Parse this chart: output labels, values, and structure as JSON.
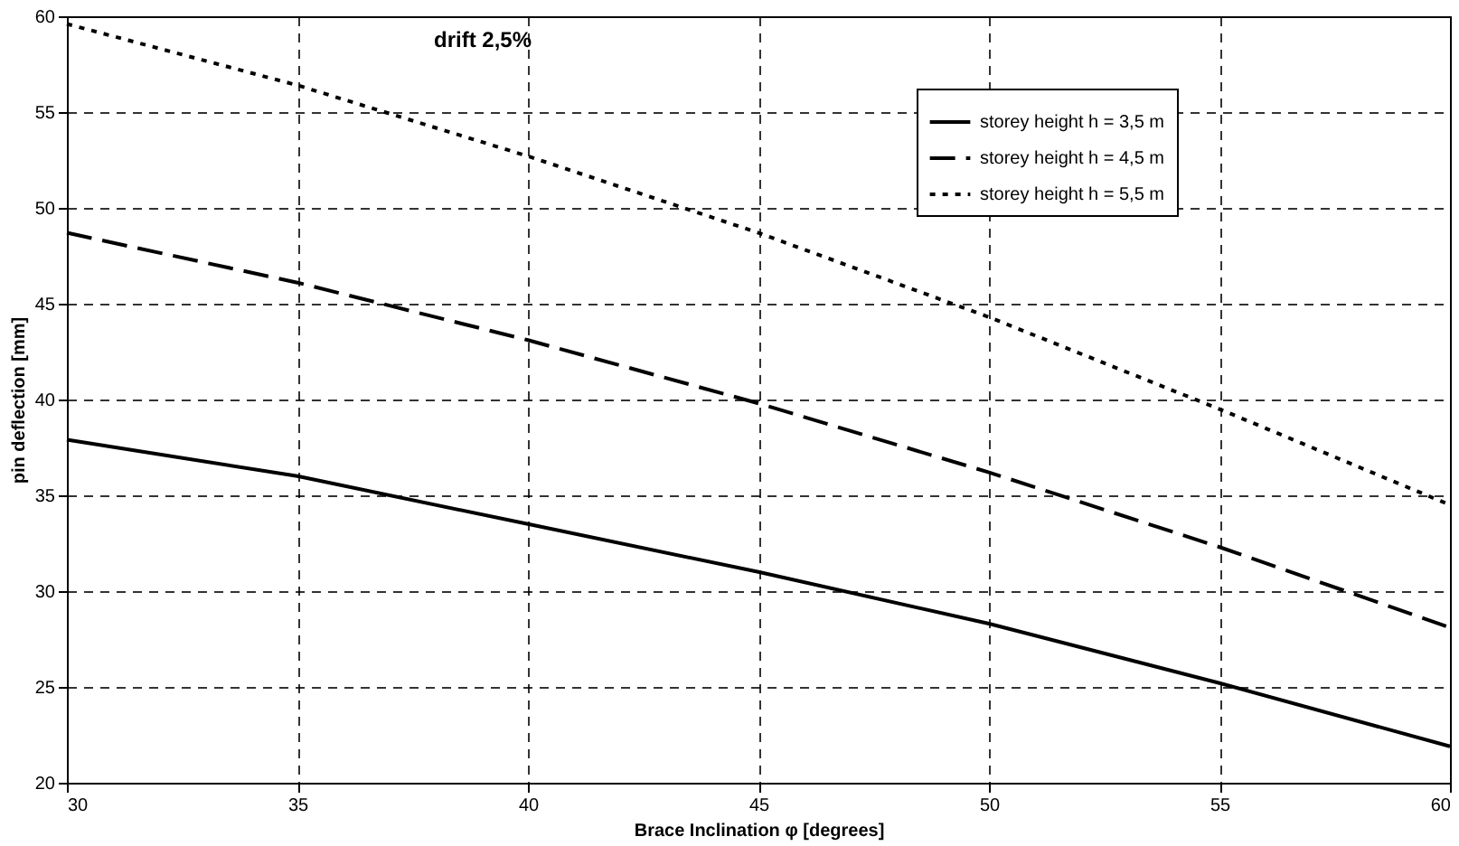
{
  "chart_data": {
    "type": "line",
    "title": "drift 2,5%",
    "xlabel": "Brace Inclination φ [degrees]",
    "ylabel": "pin deflection [mm]",
    "x": [
      30,
      35,
      40,
      45,
      50,
      55,
      60
    ],
    "series": [
      {
        "name": "storey height h = 3,5 m",
        "color": "#000000",
        "line_style": "solid",
        "values": [
          37.9,
          36.0,
          33.5,
          31.0,
          28.3,
          25.2,
          21.9
        ]
      },
      {
        "name": "storey height h = 4,5 m",
        "color": "#000000",
        "line_style": "dashed",
        "values": [
          48.7,
          46.1,
          43.1,
          39.8,
          36.2,
          32.3,
          28.1
        ]
      },
      {
        "name": "storey height h = 5,5 m",
        "color": "#000000",
        "line_style": "dotted",
        "values": [
          59.6,
          56.4,
          52.7,
          48.7,
          44.3,
          39.5,
          34.5
        ]
      }
    ],
    "xlim": [
      30,
      60
    ],
    "xticks": [
      30,
      35,
      40,
      45,
      50,
      55,
      60
    ],
    "ylim": [
      20,
      60
    ],
    "yticks": [
      20,
      25,
      30,
      35,
      40,
      45,
      50,
      55,
      60
    ],
    "grid": true,
    "legend": "top right",
    "marker": "none"
  }
}
